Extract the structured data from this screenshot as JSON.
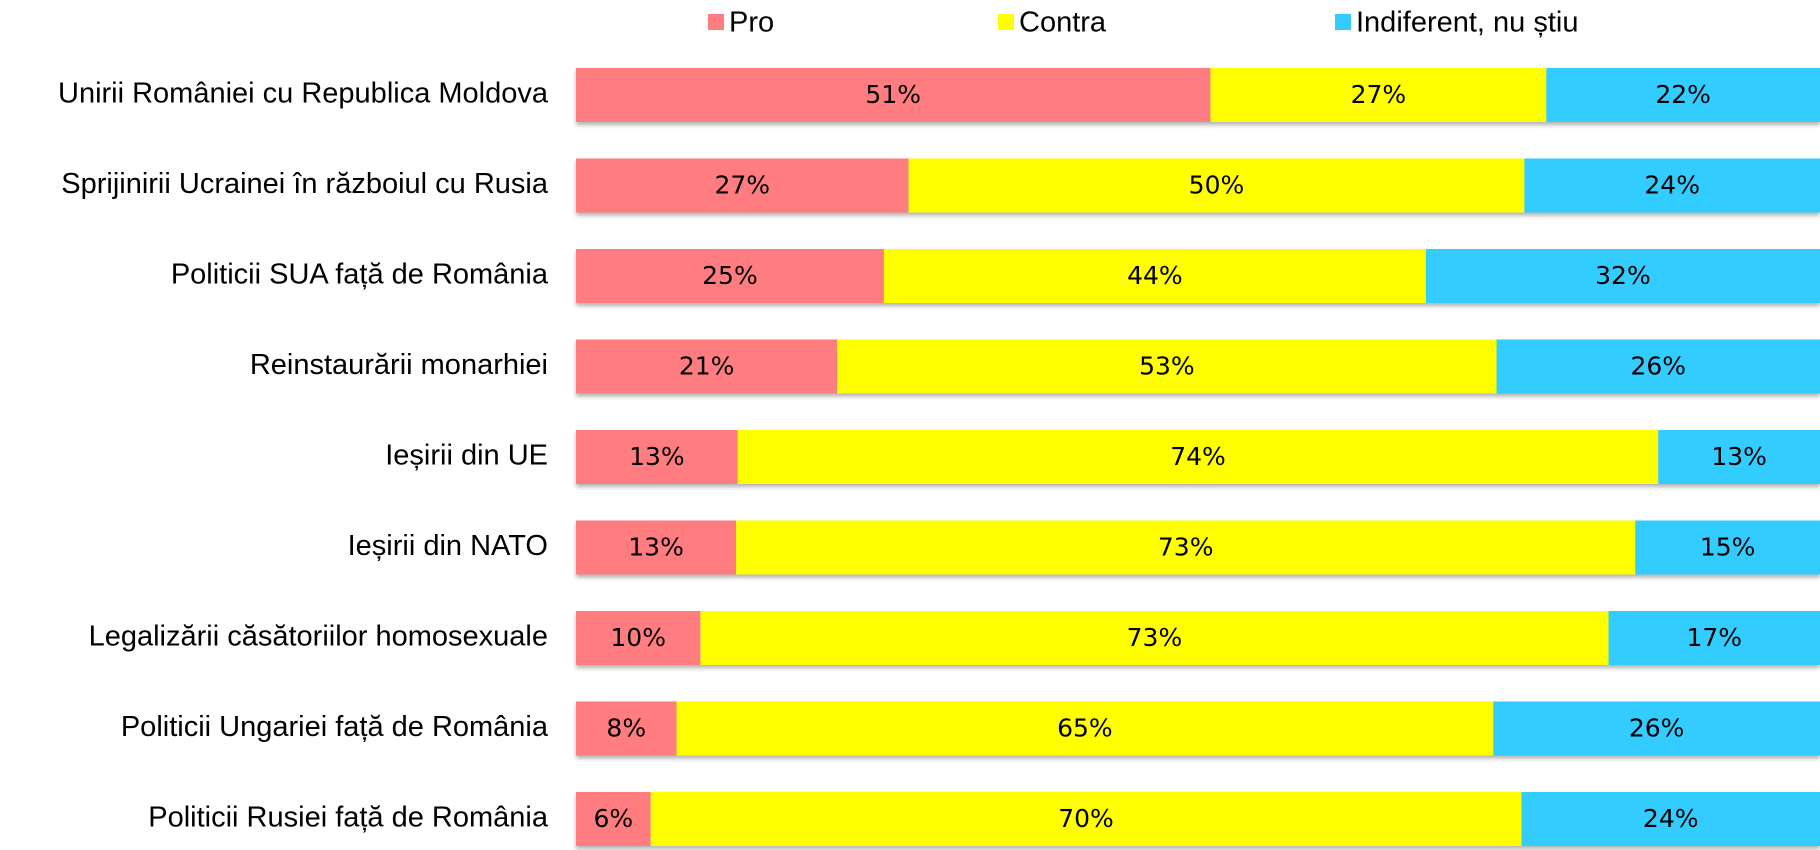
{
  "chart_data": {
    "type": "stacked100_barh",
    "categories": [
      "Unirii României cu Republica Moldova",
      "Sprijinirii Ucrainei în războiul cu Rusia",
      "Politicii SUA față de România",
      "Reinstaurării monarhiei",
      "Ieșirii din UE",
      "Ieșirii din NATO",
      "Legalizării căsătoriilor homosexuale",
      "Politicii Ungariei față de România",
      "Politicii Rusiei față de România"
    ],
    "series": [
      {
        "name": "Pro",
        "color": "#ff7c80",
        "values": [
          51,
          27,
          25,
          21,
          13,
          13,
          10,
          8,
          6
        ],
        "value_labels": [
          "51%",
          "27%",
          "25%",
          "21%",
          "13%",
          "13%",
          "10%",
          "8%",
          "6%"
        ]
      },
      {
        "name": "Contra",
        "color": "#ffff00",
        "values": [
          27,
          50,
          44,
          53,
          74,
          73,
          73,
          65,
          70
        ],
        "value_labels": [
          "27%",
          "50%",
          "44%",
          "53%",
          "74%",
          "73%",
          "73%",
          "65%",
          "70%"
        ]
      },
      {
        "name": "Indiferent, nu știu",
        "color": "#33ccff",
        "values": [
          22,
          24,
          32,
          26,
          13,
          15,
          17,
          26,
          24
        ],
        "value_labels": [
          "22%",
          "24%",
          "32%",
          "26%",
          "13%",
          "15%",
          "17%",
          "26%",
          "24%"
        ]
      }
    ],
    "legend": "top"
  }
}
